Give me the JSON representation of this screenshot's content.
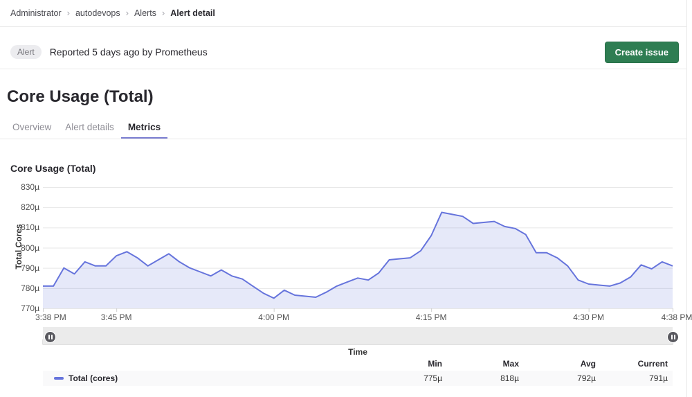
{
  "breadcrumb": {
    "items": [
      "Administrator",
      "autodevops",
      "Alerts"
    ],
    "current": "Alert detail",
    "separator": "›"
  },
  "alert_bar": {
    "badge": "Alert",
    "reported_text": "Reported 5 days ago by Prometheus",
    "create_issue_label": "Create issue"
  },
  "page_title": "Core Usage (Total)",
  "tabs": [
    {
      "label": "Overview",
      "active": false
    },
    {
      "label": "Alert details",
      "active": false
    },
    {
      "label": "Metrics",
      "active": true
    }
  ],
  "chart_data": {
    "type": "area",
    "title": "Core Usage (Total)",
    "xlabel": "Time",
    "ylabel": "Total Cores",
    "unit": "µ",
    "ylim": [
      770,
      830
    ],
    "grid": true,
    "legend_position": "bottom",
    "y_ticks": [
      {
        "value": 830,
        "label": "830µ"
      },
      {
        "value": 820,
        "label": "820µ"
      },
      {
        "value": 810,
        "label": "810µ"
      },
      {
        "value": 800,
        "label": "800µ"
      },
      {
        "value": 790,
        "label": "790µ"
      },
      {
        "value": 780,
        "label": "780µ"
      },
      {
        "value": 770,
        "label": "770µ"
      }
    ],
    "x_ticks": [
      {
        "minute": 0,
        "label": "3:38 PM"
      },
      {
        "minute": 7,
        "label": "3:45 PM"
      },
      {
        "minute": 22,
        "label": "4:00 PM"
      },
      {
        "minute": 37,
        "label": "4:15 PM"
      },
      {
        "minute": 52,
        "label": "4:30 PM"
      },
      {
        "minute": 60,
        "label": "4:38 PM"
      }
    ],
    "x_range_minutes": [
      0,
      60
    ],
    "series": [
      {
        "name": "Total (cores)",
        "color": "#6674dc",
        "fill": "rgba(102,116,220,0.16)",
        "x_minutes": [
          0,
          1,
          2,
          3,
          4,
          5,
          6,
          7,
          8,
          9,
          10,
          11,
          12,
          13,
          14,
          15,
          16,
          17,
          18,
          19,
          20,
          21,
          22,
          23,
          24,
          25,
          26,
          27,
          28,
          29,
          30,
          31,
          32,
          33,
          34,
          35,
          36,
          37,
          38,
          39,
          40,
          41,
          42,
          43,
          44,
          45,
          46,
          47,
          48,
          49,
          50,
          51,
          52,
          53,
          54,
          55,
          56,
          57,
          58,
          59,
          60
        ],
        "values": [
          781,
          781,
          790,
          787,
          793,
          791,
          791,
          796,
          798,
          795,
          791,
          794,
          797,
          793,
          790,
          788,
          786,
          789,
          786,
          784.5,
          781,
          777.5,
          775,
          779,
          776.5,
          776,
          775.5,
          778,
          781,
          783,
          785,
          784,
          787.5,
          794,
          794.5,
          795,
          798.5,
          806,
          817.5,
          816.5,
          815.5,
          812,
          812.5,
          813,
          810.5,
          809.5,
          806.5,
          797.5,
          797.5,
          795,
          791,
          784,
          782,
          781.5,
          781,
          782.5,
          785.5,
          791.5,
          789.5,
          793,
          791
        ]
      }
    ]
  },
  "slider": {
    "left_handle": "pause-handle",
    "right_handle": "pause-handle"
  },
  "stats": {
    "series_label": "Total (cores)",
    "headers": [
      "Min",
      "Max",
      "Avg",
      "Current"
    ],
    "values": [
      "775µ",
      "818µ",
      "792µ",
      "791µ"
    ]
  },
  "colors": {
    "accent_green": "#2e7d52",
    "line": "#6674dc",
    "tab_indicator": "#7a7dd1",
    "badge_bg": "#ececef",
    "grid": "#e7e7e7"
  }
}
